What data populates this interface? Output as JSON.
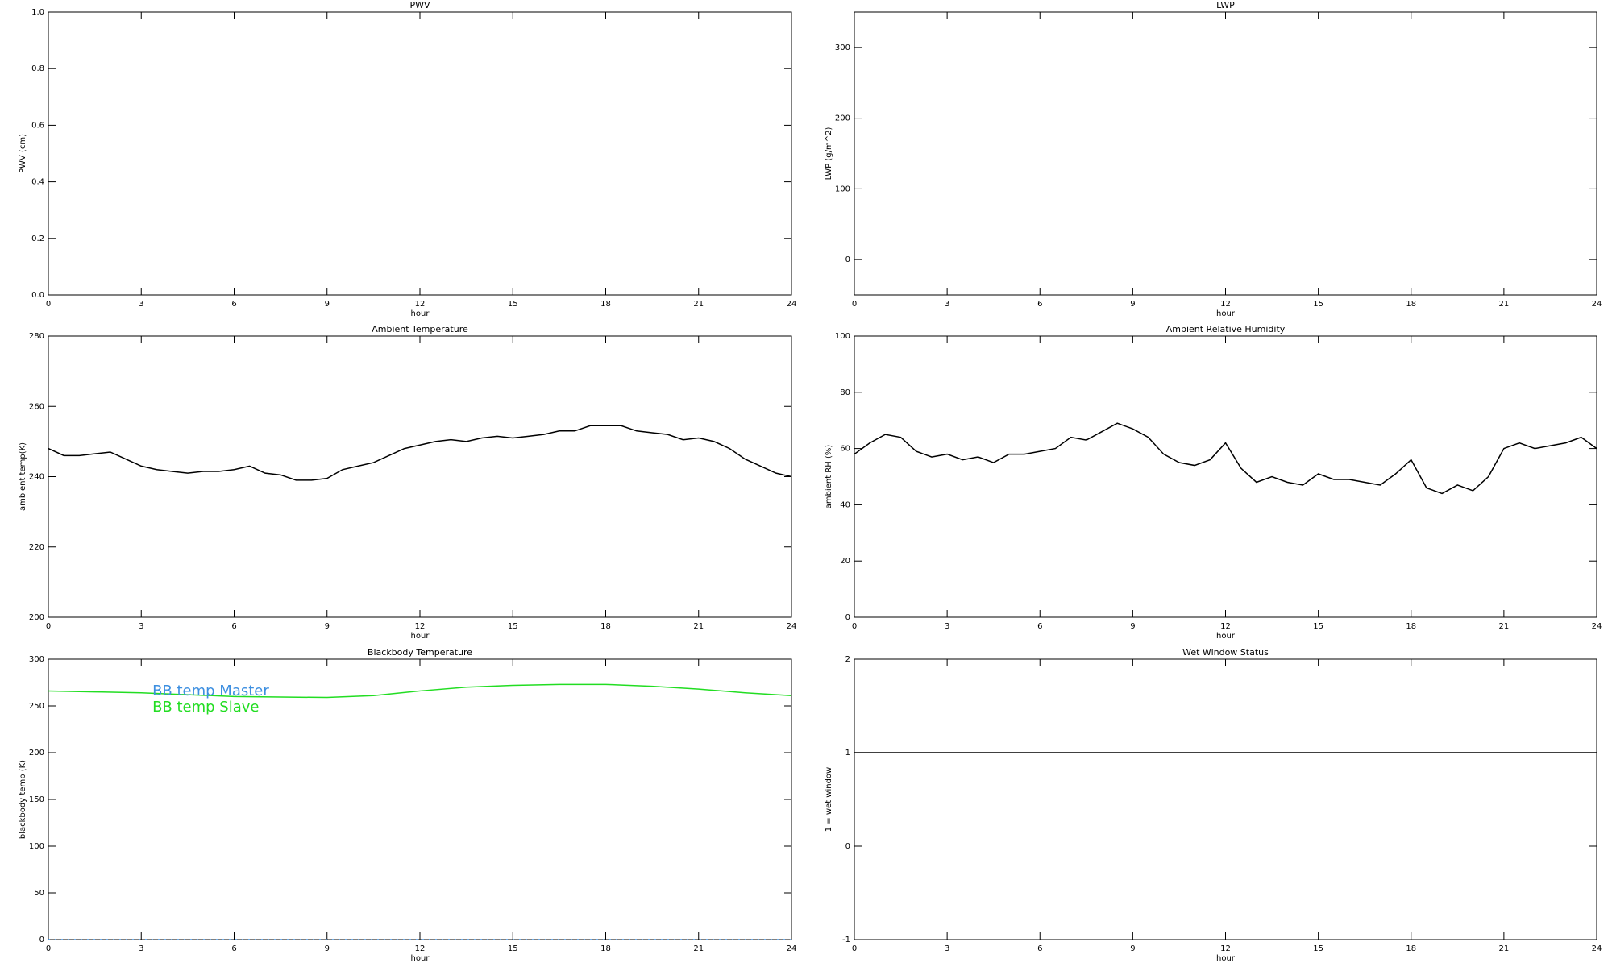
{
  "chart_data": [
    {
      "type": "line",
      "title": "PWV",
      "xlabel": "hour",
      "ylabel": "PWV (cm)",
      "xlim": [
        0,
        24
      ],
      "xticks": [
        0,
        3,
        6,
        9,
        12,
        15,
        18,
        21,
        24
      ],
      "ylim": [
        0,
        1
      ],
      "yticks": [
        {
          "value": 0,
          "label": "0.0"
        },
        {
          "value": 0.2,
          "label": "0.2"
        },
        {
          "value": 0.4,
          "label": "0.4"
        },
        {
          "value": 0.6,
          "label": "0.6"
        },
        {
          "value": 0.8,
          "label": "0.8"
        },
        {
          "value": 1,
          "label": "1.0"
        }
      ]
    },
    {
      "type": "line",
      "title": "LWP",
      "xlabel": "hour",
      "ylabel": "LWP (g/m^2)",
      "xlim": [
        0,
        24
      ],
      "xticks": [
        0,
        3,
        6,
        9,
        12,
        15,
        18,
        21,
        24
      ],
      "ylim": [
        -50,
        350
      ],
      "yticks": [
        0,
        100,
        200,
        300
      ]
    },
    {
      "type": "line",
      "title": "Ambient Temperature",
      "xlabel": "hour",
      "ylabel": "ambient temp(K)",
      "xlim": [
        0,
        24
      ],
      "xticks": [
        0,
        3,
        6,
        9,
        12,
        15,
        18,
        21,
        24
      ],
      "ylim": [
        200,
        280
      ],
      "yticks": [
        200,
        220,
        240,
        260,
        280
      ],
      "x": [
        0,
        0.5,
        1,
        1.5,
        2,
        2.5,
        3,
        3.5,
        4,
        4.5,
        5,
        5.5,
        6,
        6.5,
        7,
        7.5,
        8,
        8.5,
        9,
        9.5,
        10,
        10.5,
        11,
        11.5,
        12,
        12.5,
        13,
        13.5,
        14,
        14.5,
        15,
        15.5,
        16,
        16.5,
        17,
        17.5,
        18,
        18.5,
        19,
        19.5,
        20,
        20.5,
        21,
        21.5,
        22,
        22.5,
        23,
        23.5,
        24
      ],
      "series": [
        {
          "color": "#000000",
          "values": [
            248,
            246,
            246,
            246.5,
            247,
            245,
            243,
            242,
            241.5,
            241,
            241.5,
            241.5,
            242,
            243,
            241,
            240.5,
            239,
            239,
            239.5,
            242,
            243,
            244,
            246,
            248,
            249,
            250,
            250.5,
            250,
            251,
            251.5,
            251,
            251.5,
            252,
            253,
            253,
            254.5,
            254.5,
            254.5,
            253,
            252.5,
            252,
            250.5,
            251,
            250,
            248,
            245,
            243,
            241,
            240
          ]
        }
      ]
    },
    {
      "type": "line",
      "title": "Ambient Relative Humidity",
      "xlabel": "hour",
      "ylabel": "ambient RH (%)",
      "xlim": [
        0,
        24
      ],
      "xticks": [
        0,
        3,
        6,
        9,
        12,
        15,
        18,
        21,
        24
      ],
      "ylim": [
        0,
        100
      ],
      "yticks": [
        0,
        20,
        40,
        60,
        80,
        100
      ],
      "x": [
        0,
        0.5,
        1,
        1.5,
        2,
        2.5,
        3,
        3.5,
        4,
        4.5,
        5,
        5.5,
        6,
        6.5,
        7,
        7.5,
        8,
        8.5,
        9,
        9.5,
        10,
        10.5,
        11,
        11.5,
        12,
        12.5,
        13,
        13.5,
        14,
        14.5,
        15,
        15.5,
        16,
        16.5,
        17,
        17.5,
        18,
        18.5,
        19,
        19.5,
        20,
        20.5,
        21,
        21.5,
        22,
        22.5,
        23,
        23.5,
        24
      ],
      "series": [
        {
          "color": "#000000",
          "values": [
            58,
            62,
            65,
            64,
            59,
            57,
            58,
            56,
            57,
            55,
            58,
            58,
            59,
            60,
            64,
            63,
            66,
            69,
            67,
            64,
            58,
            55,
            54,
            56,
            62,
            53,
            48,
            50,
            48,
            47,
            51,
            49,
            49,
            48,
            47,
            51,
            56,
            46,
            44,
            47,
            45,
            50,
            60,
            62,
            60,
            61,
            62,
            64,
            60
          ]
        }
      ]
    },
    {
      "type": "line",
      "title": "Blackbody Temperature",
      "xlabel": "hour",
      "ylabel": "blackbody temp (K)",
      "xlim": [
        0,
        24
      ],
      "xticks": [
        0,
        3,
        6,
        9,
        12,
        15,
        18,
        21,
        24
      ],
      "ylim": [
        0,
        300
      ],
      "yticks": [
        0,
        50,
        100,
        150,
        200,
        250,
        300
      ],
      "x": [
        0,
        1.5,
        3,
        4.5,
        6,
        7.5,
        9,
        10.5,
        12,
        13.5,
        15,
        16.5,
        18,
        19.5,
        21,
        22.5,
        24
      ],
      "series": [
        {
          "name": "BB temp Master",
          "color": "#3d8fe0",
          "values": [
            0,
            0,
            0,
            0,
            0,
            0,
            0,
            0,
            0,
            0,
            0,
            0,
            0,
            0,
            0,
            0,
            0
          ]
        },
        {
          "name": "BB temp Slave",
          "color": "#22dd22",
          "values": [
            266,
            265,
            264,
            262,
            260,
            259.5,
            259,
            261,
            266,
            270,
            272,
            273,
            273,
            271,
            268,
            264,
            261
          ]
        }
      ]
    },
    {
      "type": "line",
      "title": "Wet Window Status",
      "xlabel": "hour",
      "ylabel": "1 = wet window",
      "xlim": [
        0,
        24
      ],
      "xticks": [
        0,
        3,
        6,
        9,
        12,
        15,
        18,
        21,
        24
      ],
      "ylim": [
        -1,
        2
      ],
      "yticks": [
        -1,
        0,
        1,
        2
      ],
      "x": [
        0,
        24
      ],
      "series": [
        {
          "color": "#000000",
          "values": [
            1,
            1
          ]
        }
      ]
    }
  ]
}
